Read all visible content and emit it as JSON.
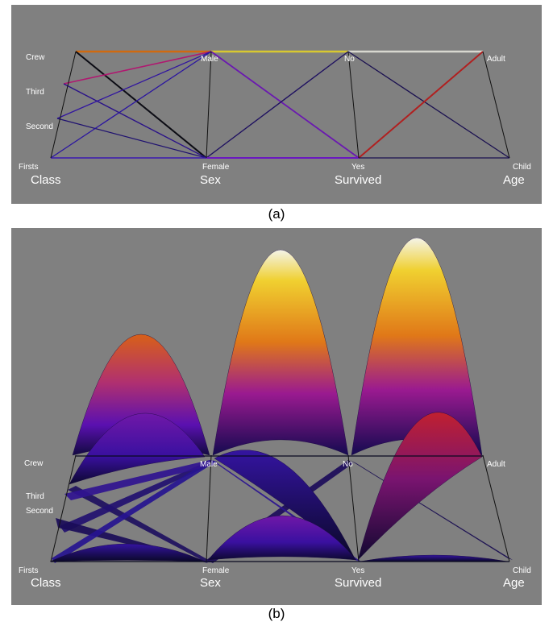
{
  "panel_a": {
    "caption": "(a)",
    "axes": [
      {
        "name": "Class",
        "categories": [
          "Crew",
          "Third",
          "Second",
          "Firsts"
        ]
      },
      {
        "name": "Sex",
        "categories": [
          "Male",
          "Female"
        ]
      },
      {
        "name": "Survived",
        "categories": [
          "No",
          "Yes"
        ]
      },
      {
        "name": "Age",
        "categories": [
          "Adult",
          "Child"
        ]
      }
    ]
  },
  "panel_b": {
    "caption": "(b)",
    "axes": [
      {
        "name": "Class",
        "categories": [
          "Crew",
          "Third",
          "Second",
          "Firsts"
        ]
      },
      {
        "name": "Sex",
        "categories": [
          "Male",
          "Female"
        ]
      },
      {
        "name": "Survived",
        "categories": [
          "No",
          "Yes"
        ]
      },
      {
        "name": "Age",
        "categories": [
          "Adult",
          "Child"
        ]
      }
    ]
  },
  "colors": {
    "background": "#808080",
    "axis_line": "#111111",
    "label": "#ffffff",
    "colormap": [
      "#0a0a2a",
      "#2a0a8a",
      "#5a10b0",
      "#9a1a90",
      "#d04020",
      "#f08a10",
      "#f0d030",
      "#f0f0e0"
    ]
  }
}
